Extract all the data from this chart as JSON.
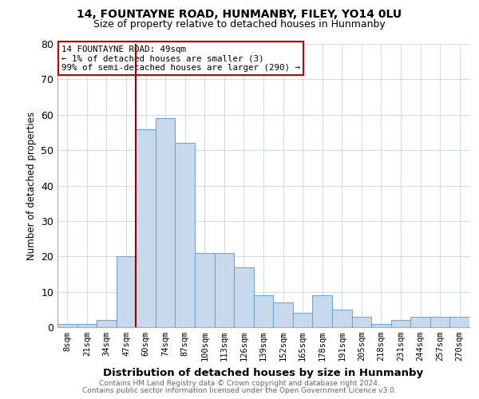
{
  "title1": "14, FOUNTAYNE ROAD, HUNMANBY, FILEY, YO14 0LU",
  "title2": "Size of property relative to detached houses in Hunmanby",
  "xlabel": "Distribution of detached houses by size in Hunmanby",
  "ylabel": "Number of detached properties",
  "footnote1": "Contains HM Land Registry data © Crown copyright and database right 2024.",
  "footnote2": "Contains public sector information licensed under the Open Government Licence v3.0.",
  "bar_labels": [
    "8sqm",
    "21sqm",
    "34sqm",
    "47sqm",
    "60sqm",
    "74sqm",
    "87sqm",
    "100sqm",
    "113sqm",
    "126sqm",
    "139sqm",
    "152sqm",
    "165sqm",
    "178sqm",
    "191sqm",
    "205sqm",
    "218sqm",
    "231sqm",
    "244sqm",
    "257sqm",
    "270sqm"
  ],
  "bar_values": [
    1,
    1,
    2,
    20,
    56,
    59,
    52,
    21,
    21,
    17,
    9,
    7,
    4,
    9,
    5,
    3,
    1,
    2,
    3,
    3,
    3
  ],
  "bar_color": "#c8d9ee",
  "bar_edge_color": "#6aaad4",
  "highlight_line_color": "#990000",
  "annotation_box_color": "#ffffff",
  "annotation_border_color": "#cc0000",
  "annotation_text_line1": "14 FOUNTAYNE ROAD: 49sqm",
  "annotation_text_line2": "← 1% of detached houses are smaller (3)",
  "annotation_text_line3": "99% of semi-detached houses are larger (290) →",
  "ylim": [
    0,
    80
  ],
  "yticks": [
    0,
    10,
    20,
    30,
    40,
    50,
    60,
    70,
    80
  ],
  "background_color": "#ffffff",
  "grid_color": "#d0dcea"
}
